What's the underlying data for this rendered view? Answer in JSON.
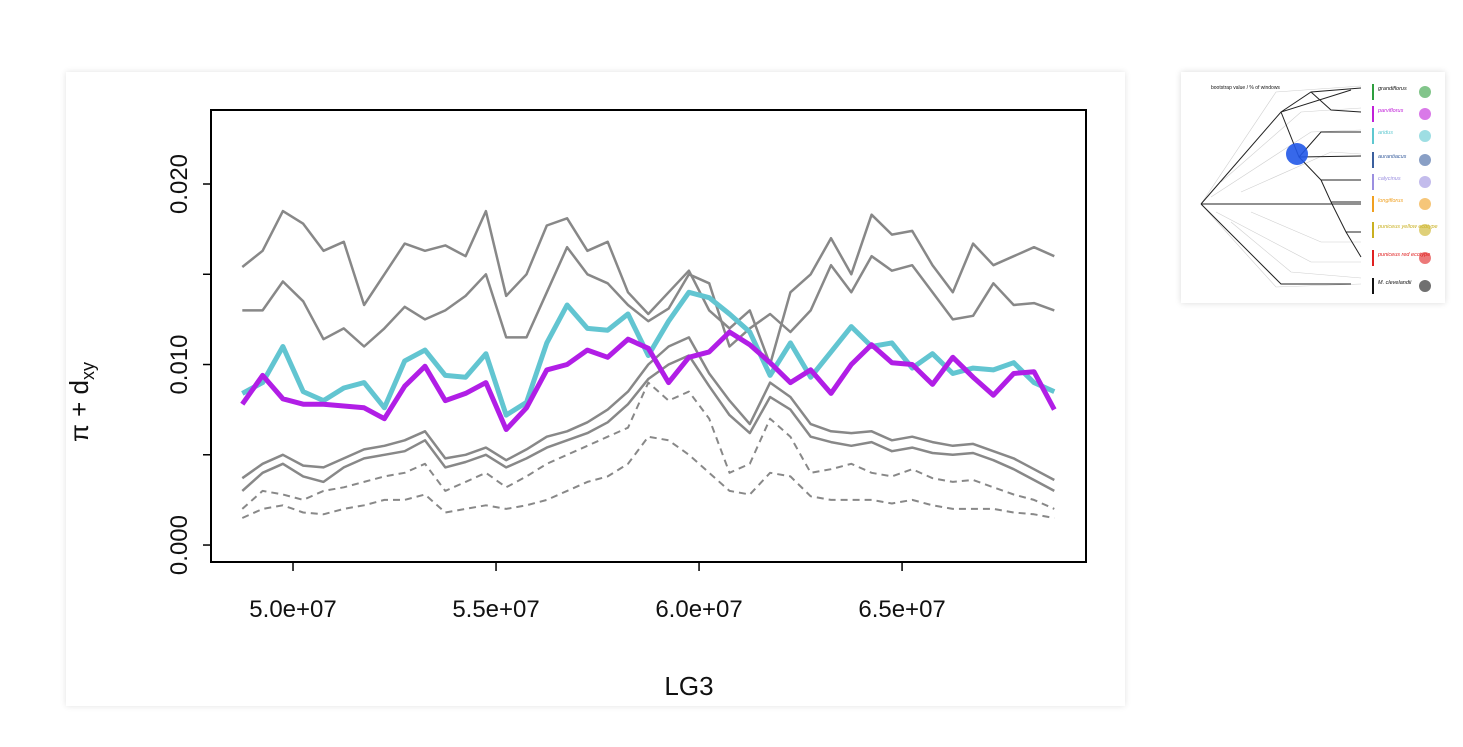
{
  "chart_data": {
    "type": "line",
    "xlabel": "LG3",
    "ylabel": "π + d",
    "ylabel_sub": "xy",
    "x": [
      48750000,
      49250000,
      49750000,
      50250000,
      50750000,
      51250000,
      51750000,
      52250000,
      52750000,
      53250000,
      53750000,
      54250000,
      54750000,
      55250000,
      55750000,
      56250000,
      56750000,
      57250000,
      57750000,
      58250000,
      58750000,
      59250000,
      59750000,
      60250000,
      60750000,
      61250000,
      61750000,
      62250000,
      62750000,
      63250000,
      63750000,
      64250000,
      64750000,
      65250000,
      65750000,
      66250000,
      66750000,
      67250000,
      67750000,
      68250000,
      68750000
    ],
    "xlim": [
      47980000,
      69530000
    ],
    "xticks": [
      {
        "value": 50000000,
        "label": "5.0e+07"
      },
      {
        "value": 55000000,
        "label": "5.5e+07"
      },
      {
        "value": 60000000,
        "label": "6.0e+07"
      },
      {
        "value": 65000000,
        "label": "6.5e+07"
      }
    ],
    "ylim": [
      -0.00094,
      0.0241
    ],
    "yticks": [
      {
        "value": 0,
        "label": "0.000"
      },
      {
        "value": 0.01,
        "label": "0.010"
      },
      {
        "value": 0.02,
        "label": "0.020"
      }
    ],
    "yticks_unlabeled": [
      0.005,
      0.015
    ],
    "series": [
      {
        "color": "#888888",
        "linewidth": 2.5,
        "linestyle": "solid",
        "values": [
          0.0154,
          0.0163,
          0.0185,
          0.0178,
          0.0163,
          0.0168,
          0.0133,
          0.015,
          0.0167,
          0.0163,
          0.0166,
          0.016,
          0.0185,
          0.0138,
          0.015,
          0.0177,
          0.0181,
          0.0163,
          0.0168,
          0.014,
          0.0128,
          0.014,
          0.0152,
          0.013,
          0.012,
          0.013,
          0.01,
          0.014,
          0.015,
          0.017,
          0.015,
          0.0183,
          0.0172,
          0.0174,
          0.0155,
          0.014,
          0.0167,
          0.0155,
          0.016,
          0.0165,
          0.016
        ]
      },
      {
        "color": "#888888",
        "linewidth": 2.5,
        "linestyle": "solid",
        "values": [
          0.013,
          0.013,
          0.0146,
          0.0135,
          0.0114,
          0.012,
          0.011,
          0.012,
          0.0132,
          0.0125,
          0.013,
          0.0138,
          0.015,
          0.0115,
          0.0115,
          0.014,
          0.0165,
          0.015,
          0.0145,
          0.0133,
          0.0124,
          0.0131,
          0.015,
          0.0145,
          0.011,
          0.012,
          0.0128,
          0.0118,
          0.013,
          0.0155,
          0.014,
          0.016,
          0.0152,
          0.0155,
          0.014,
          0.0125,
          0.0127,
          0.0145,
          0.0133,
          0.0134,
          0.013
        ]
      },
      {
        "color": "#888888",
        "linewidth": 2.5,
        "linestyle": "solid",
        "values": [
          0.0037,
          0.0045,
          0.005,
          0.0044,
          0.0043,
          0.0048,
          0.0053,
          0.0055,
          0.0058,
          0.0063,
          0.0048,
          0.005,
          0.0054,
          0.0047,
          0.0053,
          0.006,
          0.0063,
          0.0068,
          0.0075,
          0.0085,
          0.01,
          0.011,
          0.0115,
          0.0095,
          0.008,
          0.0067,
          0.009,
          0.0082,
          0.0067,
          0.0063,
          0.0062,
          0.0063,
          0.0058,
          0.006,
          0.0057,
          0.0055,
          0.0056,
          0.0052,
          0.0048,
          0.0042,
          0.0036
        ]
      },
      {
        "color": "#888888",
        "linewidth": 2.5,
        "linestyle": "solid",
        "values": [
          0.003,
          0.004,
          0.0045,
          0.0038,
          0.0035,
          0.0043,
          0.0048,
          0.005,
          0.0052,
          0.0058,
          0.0043,
          0.0046,
          0.005,
          0.0043,
          0.0048,
          0.0054,
          0.0058,
          0.0062,
          0.0068,
          0.0078,
          0.0092,
          0.01,
          0.0105,
          0.0088,
          0.0072,
          0.0062,
          0.0082,
          0.0075,
          0.006,
          0.0057,
          0.0055,
          0.0057,
          0.0052,
          0.0054,
          0.0051,
          0.005,
          0.0051,
          0.0047,
          0.0042,
          0.0036,
          0.003
        ]
      },
      {
        "color": "#888888",
        "linewidth": 2,
        "linestyle": "dashed",
        "values": [
          0.002,
          0.003,
          0.0028,
          0.0025,
          0.003,
          0.0032,
          0.0035,
          0.0038,
          0.004,
          0.0045,
          0.003,
          0.0035,
          0.004,
          0.0032,
          0.0038,
          0.0045,
          0.005,
          0.0055,
          0.006,
          0.0065,
          0.009,
          0.008,
          0.0085,
          0.007,
          0.004,
          0.0045,
          0.007,
          0.006,
          0.004,
          0.0042,
          0.0045,
          0.004,
          0.0038,
          0.0042,
          0.0037,
          0.0035,
          0.0036,
          0.0032,
          0.0028,
          0.0025,
          0.002
        ]
      },
      {
        "color": "#888888",
        "linewidth": 2,
        "linestyle": "dashed",
        "values": [
          0.0015,
          0.002,
          0.0022,
          0.0018,
          0.0017,
          0.002,
          0.0022,
          0.0025,
          0.0025,
          0.0028,
          0.0018,
          0.002,
          0.0022,
          0.002,
          0.0022,
          0.0025,
          0.003,
          0.0035,
          0.0038,
          0.0045,
          0.006,
          0.0058,
          0.005,
          0.004,
          0.003,
          0.0028,
          0.004,
          0.0038,
          0.0027,
          0.0025,
          0.0025,
          0.0025,
          0.0023,
          0.0025,
          0.0022,
          0.002,
          0.002,
          0.002,
          0.0018,
          0.0017,
          0.0015
        ]
      },
      {
        "color": "#62c5d1",
        "linewidth": 5,
        "linestyle": "solid",
        "values": [
          0.0084,
          0.009,
          0.011,
          0.0085,
          0.008,
          0.0087,
          0.009,
          0.0076,
          0.0102,
          0.0108,
          0.0094,
          0.0093,
          0.0106,
          0.0072,
          0.0079,
          0.0112,
          0.0133,
          0.012,
          0.0119,
          0.0128,
          0.0105,
          0.0124,
          0.014,
          0.0137,
          0.0128,
          0.0118,
          0.0094,
          0.0112,
          0.0093,
          0.0107,
          0.0121,
          0.011,
          0.0112,
          0.0098,
          0.0106,
          0.0095,
          0.0098,
          0.0097,
          0.0101,
          0.009,
          0.0085
        ]
      },
      {
        "color": "#b11ee6",
        "linewidth": 5,
        "linestyle": "solid",
        "values": [
          0.0078,
          0.0094,
          0.0081,
          0.0078,
          0.0078,
          0.0077,
          0.0076,
          0.007,
          0.0088,
          0.0099,
          0.008,
          0.0084,
          0.009,
          0.0064,
          0.0076,
          0.0097,
          0.01,
          0.0108,
          0.0104,
          0.0114,
          0.0109,
          0.009,
          0.0104,
          0.0107,
          0.0118,
          0.0111,
          0.0101,
          0.009,
          0.0097,
          0.0084,
          0.01,
          0.0111,
          0.0101,
          0.01,
          0.0089,
          0.0104,
          0.0093,
          0.0083,
          0.0095,
          0.0096,
          0.0075
        ]
      }
    ]
  },
  "inset": {
    "legend": "bootstrap value / % of windows",
    "taxa": [
      {
        "name": "grandiflorus",
        "color": "#2e9e3e"
      },
      {
        "name": "parviflorus",
        "color": "#c020d8"
      },
      {
        "name": "aridus",
        "color": "#5ec8d0"
      },
      {
        "name": "aurantiacus",
        "color": "#3a5f9e"
      },
      {
        "name": "calycinus",
        "color": "#9b8fe0"
      },
      {
        "name": "longiflorus",
        "color": "#f0a020"
      },
      {
        "name": "puniceus yellow ecotype",
        "color": "#c9b020"
      },
      {
        "name": "puniceus red ecotype",
        "color": "#e02020"
      },
      {
        "name": "M. clevelandii",
        "color": "#111111"
      }
    ]
  }
}
